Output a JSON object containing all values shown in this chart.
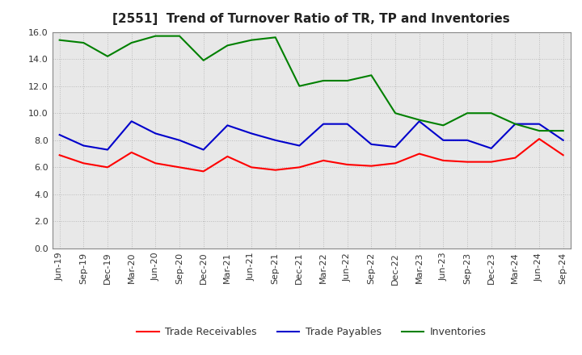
{
  "title": "[2551]  Trend of Turnover Ratio of TR, TP and Inventories",
  "x_labels": [
    "Jun-19",
    "Sep-19",
    "Dec-19",
    "Mar-20",
    "Jun-20",
    "Sep-20",
    "Dec-20",
    "Mar-21",
    "Jun-21",
    "Sep-21",
    "Dec-21",
    "Mar-22",
    "Jun-22",
    "Sep-22",
    "Dec-22",
    "Mar-23",
    "Jun-23",
    "Sep-23",
    "Dec-23",
    "Mar-24",
    "Jun-24",
    "Sep-24"
  ],
  "trade_receivables": [
    6.9,
    6.3,
    6.0,
    7.1,
    6.3,
    6.0,
    5.7,
    6.8,
    6.0,
    5.8,
    6.0,
    6.5,
    6.2,
    6.1,
    6.3,
    7.0,
    6.5,
    6.4,
    6.4,
    6.7,
    8.1,
    6.9
  ],
  "trade_payables": [
    8.4,
    7.6,
    7.3,
    9.4,
    8.5,
    8.0,
    7.3,
    9.1,
    8.5,
    8.0,
    7.6,
    9.2,
    9.2,
    7.7,
    7.5,
    9.4,
    8.0,
    8.0,
    7.4,
    9.2,
    9.2,
    8.0
  ],
  "inventories": [
    15.4,
    15.2,
    14.2,
    15.2,
    15.7,
    15.7,
    13.9,
    15.0,
    15.4,
    15.6,
    12.0,
    12.4,
    12.4,
    12.8,
    10.0,
    9.5,
    9.1,
    10.0,
    10.0,
    9.2,
    8.7,
    8.7
  ],
  "ylim": [
    0,
    16.0
  ],
  "yticks": [
    0.0,
    2.0,
    4.0,
    6.0,
    8.0,
    10.0,
    12.0,
    14.0,
    16.0
  ],
  "color_tr": "#ff0000",
  "color_tp": "#0000cc",
  "color_inv": "#008000",
  "legend_labels": [
    "Trade Receivables",
    "Trade Payables",
    "Inventories"
  ],
  "background_color": "#ffffff",
  "plot_bg_color": "#e8e8e8",
  "grid_color": "#bbbbbb",
  "title_fontsize": 11,
  "tick_fontsize": 8,
  "legend_fontsize": 9,
  "linewidth": 1.5
}
